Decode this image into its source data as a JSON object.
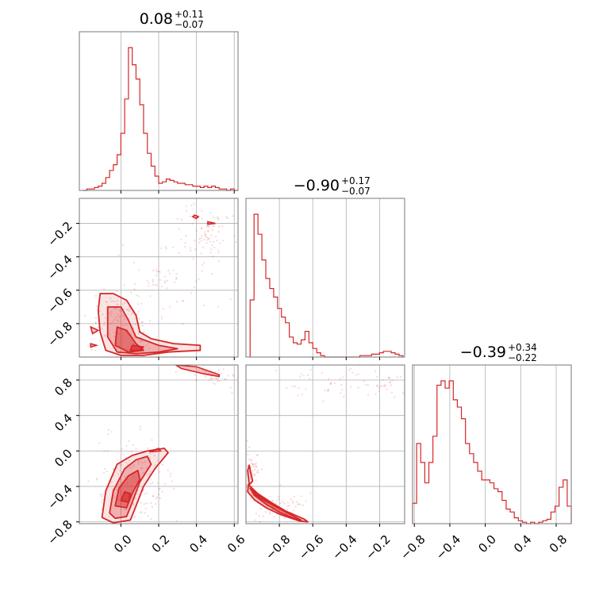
{
  "chart_data": {
    "type": "corner",
    "color": "#d62728",
    "grid": true,
    "parameters": [
      {
        "title": {
          "median": "0.08",
          "plus": "+0.11",
          "minus": "−0.07"
        },
        "range": [
          -0.22,
          0.62
        ],
        "ticks": [
          0.0,
          0.2,
          0.4,
          0.6
        ],
        "tick_labels": [
          "0.0",
          "0.2",
          "0.4",
          "0.6"
        ]
      },
      {
        "title": {
          "median": "−0.90",
          "plus": "+0.17",
          "minus": "−0.07"
        },
        "range": [
          -1.0,
          -0.05
        ],
        "ticks": [
          -0.8,
          -0.6,
          -0.4,
          -0.2
        ],
        "tick_labels": [
          "−0.8",
          "−0.6",
          "−0.4",
          "−0.2"
        ]
      },
      {
        "title": {
          "median": "−0.39",
          "plus": "+0.34",
          "minus": "−0.22"
        },
        "range": [
          -0.82,
          0.97
        ],
        "ticks": [
          -0.8,
          -0.4,
          0.0,
          0.4,
          0.8
        ],
        "tick_labels": [
          "−0.8",
          "−0.4",
          "0.0",
          "0.4",
          "0.8"
        ]
      }
    ],
    "histograms": [
      {
        "param": 0,
        "bins": [
          -0.2,
          0.62
        ],
        "counts": [
          0,
          1,
          1,
          2,
          3,
          5,
          9,
          14,
          18,
          25,
          40,
          64,
          100,
          88,
          78,
          60,
          40,
          26,
          17,
          10,
          5,
          6,
          8,
          7,
          6,
          5,
          5,
          4,
          4,
          3,
          3,
          2,
          3,
          2,
          3,
          2,
          1,
          1,
          0,
          1,
          0
        ]
      },
      {
        "param": 1,
        "bins": [
          -0.975,
          -0.06
        ],
        "counts": [
          40,
          100,
          86,
          68,
          55,
          48,
          42,
          34,
          28,
          24,
          14,
          10,
          9,
          12,
          18,
          10,
          6,
          3,
          1,
          0,
          0,
          0,
          0,
          0,
          0,
          0,
          0,
          0,
          1,
          1,
          1,
          2,
          2,
          3,
          4,
          4,
          3,
          2,
          1
        ]
      },
      {
        "param": 2,
        "bins": [
          -0.82,
          0.97
        ],
        "counts": [
          14,
          55,
          42,
          28,
          42,
          60,
          95,
          98,
          93,
          98,
          85,
          80,
          72,
          55,
          48,
          42,
          36,
          30,
          30,
          28,
          24,
          22,
          16,
          10,
          8,
          4,
          2,
          1,
          0,
          1,
          0,
          1,
          2,
          3,
          8,
          12,
          25,
          30,
          12
        ]
      }
    ],
    "panels_2d": [
      {
        "x_param": 0,
        "y_param": 1,
        "contour_levels": [
          [
            [
              -0.11,
              -0.62
            ],
            [
              -0.04,
              -0.62
            ],
            [
              0.03,
              -0.66
            ],
            [
              0.08,
              -0.75
            ],
            [
              0.1,
              -0.85
            ],
            [
              0.16,
              -0.89
            ],
            [
              0.28,
              -0.92
            ],
            [
              0.42,
              -0.93
            ],
            [
              0.42,
              -0.96
            ],
            [
              0.25,
              -0.97
            ],
            [
              0.12,
              -0.99
            ],
            [
              0.0,
              -0.99
            ],
            [
              -0.08,
              -0.96
            ],
            [
              -0.11,
              -0.85
            ],
            [
              -0.12,
              -0.72
            ]
          ],
          [
            [
              -0.07,
              -0.7
            ],
            [
              0.0,
              -0.7
            ],
            [
              0.04,
              -0.78
            ],
            [
              0.08,
              -0.88
            ],
            [
              0.2,
              -0.93
            ],
            [
              0.3,
              -0.95
            ],
            [
              0.2,
              -0.97
            ],
            [
              0.08,
              -0.98
            ],
            [
              -0.02,
              -0.97
            ],
            [
              -0.07,
              -0.88
            ]
          ],
          [
            [
              -0.02,
              -0.82
            ],
            [
              0.03,
              -0.84
            ],
            [
              0.08,
              -0.92
            ],
            [
              0.12,
              -0.96
            ],
            [
              0.04,
              -0.97
            ],
            [
              -0.03,
              -0.93
            ]
          ],
          [
            [
              0.06,
              -0.93
            ],
            [
              0.12,
              -0.94
            ],
            [
              0.1,
              -0.96
            ],
            [
              0.05,
              -0.96
            ]
          ]
        ],
        "islands": [
          [
            [
              0.39,
              -0.15
            ],
            [
              0.41,
              -0.16
            ],
            [
              0.4,
              -0.17
            ],
            [
              0.38,
              -0.16
            ]
          ],
          [
            [
              0.46,
              -0.19
            ],
            [
              0.5,
              -0.2
            ],
            [
              0.46,
              -0.205
            ]
          ],
          [
            [
              -0.16,
              -0.82
            ],
            [
              -0.12,
              -0.84
            ],
            [
              -0.15,
              -0.86
            ]
          ],
          [
            [
              -0.16,
              -0.92
            ],
            [
              -0.13,
              -0.93
            ],
            [
              -0.16,
              -0.94
            ]
          ]
        ],
        "scatter_clouds": [
          {
            "cx": 0.45,
            "cy": -0.25,
            "sx": 0.08,
            "sy": 0.1,
            "n": 90
          },
          {
            "cx": 0.25,
            "cy": -0.55,
            "sx": 0.12,
            "sy": 0.12,
            "n": 60
          },
          {
            "cx": 0.0,
            "cy": -0.8,
            "sx": 0.08,
            "sy": 0.1,
            "n": 120
          }
        ]
      },
      {
        "x_param": 0,
        "y_param": 2,
        "contour_levels": [
          [
            [
              -0.1,
              -0.75
            ],
            [
              -0.08,
              -0.45
            ],
            [
              -0.02,
              -0.15
            ],
            [
              0.06,
              -0.05
            ],
            [
              0.14,
              0.0
            ],
            [
              0.23,
              0.03
            ],
            [
              0.25,
              -0.02
            ],
            [
              0.18,
              -0.2
            ],
            [
              0.12,
              -0.4
            ],
            [
              0.08,
              -0.62
            ],
            [
              0.05,
              -0.78
            ],
            [
              -0.04,
              -0.81
            ]
          ],
          [
            [
              -0.06,
              -0.7
            ],
            [
              -0.04,
              -0.45
            ],
            [
              0.02,
              -0.2
            ],
            [
              0.08,
              -0.1
            ],
            [
              0.14,
              -0.06
            ],
            [
              0.16,
              -0.15
            ],
            [
              0.1,
              -0.35
            ],
            [
              0.06,
              -0.58
            ],
            [
              0.03,
              -0.74
            ],
            [
              -0.03,
              -0.76
            ]
          ],
          [
            [
              -0.03,
              -0.62
            ],
            [
              -0.01,
              -0.42
            ],
            [
              0.04,
              -0.28
            ],
            [
              0.09,
              -0.22
            ],
            [
              0.1,
              -0.32
            ],
            [
              0.06,
              -0.48
            ],
            [
              0.03,
              -0.64
            ]
          ],
          [
            [
              0.0,
              -0.56
            ],
            [
              0.02,
              -0.46
            ],
            [
              0.05,
              -0.48
            ],
            [
              0.04,
              -0.58
            ]
          ]
        ],
        "islands": [
          [
            [
              0.29,
              0.97
            ],
            [
              0.4,
              0.95
            ],
            [
              0.52,
              0.86
            ],
            [
              0.52,
              0.84
            ],
            [
              0.44,
              0.87
            ],
            [
              0.32,
              0.93
            ]
          ],
          [
            [
              0.15,
              -0.01
            ],
            [
              0.2,
              0.03
            ],
            [
              0.21,
              0.0
            ]
          ]
        ],
        "scatter_clouds": [
          {
            "cx": 0.05,
            "cy": -0.35,
            "sx": 0.1,
            "sy": 0.25,
            "n": 160
          },
          {
            "cx": 0.5,
            "cy": 0.85,
            "sx": 0.06,
            "sy": 0.06,
            "n": 40
          }
        ]
      },
      {
        "x_param": 1,
        "y_param": 2,
        "contour_levels": [
          [
            [
              -0.98,
              -0.16
            ],
            [
              -0.97,
              -0.26
            ],
            [
              -0.96,
              -0.34
            ],
            [
              -0.98,
              -0.38
            ],
            [
              -0.99,
              -0.22
            ]
          ],
          [
            [
              -0.985,
              -0.38
            ],
            [
              -0.93,
              -0.48
            ],
            [
              -0.85,
              -0.58
            ],
            [
              -0.76,
              -0.68
            ],
            [
              -0.65,
              -0.77
            ],
            [
              -0.63,
              -0.8
            ],
            [
              -0.68,
              -0.79
            ],
            [
              -0.79,
              -0.72
            ],
            [
              -0.88,
              -0.64
            ],
            [
              -0.95,
              -0.55
            ],
            [
              -0.99,
              -0.46
            ]
          ],
          [
            [
              -0.975,
              -0.42
            ],
            [
              -0.92,
              -0.51
            ],
            [
              -0.84,
              -0.61
            ],
            [
              -0.75,
              -0.7
            ],
            [
              -0.67,
              -0.78
            ],
            [
              -0.7,
              -0.77
            ],
            [
              -0.79,
              -0.7
            ],
            [
              -0.88,
              -0.6
            ],
            [
              -0.95,
              -0.5
            ]
          ],
          [
            [
              -0.96,
              -0.46
            ],
            [
              -0.9,
              -0.54
            ],
            [
              -0.86,
              -0.59
            ],
            [
              -0.89,
              -0.56
            ],
            [
              -0.95,
              -0.49
            ]
          ]
        ],
        "islands": [],
        "scatter_clouds": [
          {
            "cx": -0.35,
            "cy": 0.78,
            "sx": 0.22,
            "sy": 0.1,
            "n": 80
          },
          {
            "cx": -0.97,
            "cy": -0.2,
            "sx": 0.02,
            "sy": 0.15,
            "n": 60
          },
          {
            "cx": -0.8,
            "cy": -0.62,
            "sx": 0.1,
            "sy": 0.08,
            "n": 60
          }
        ]
      }
    ]
  }
}
